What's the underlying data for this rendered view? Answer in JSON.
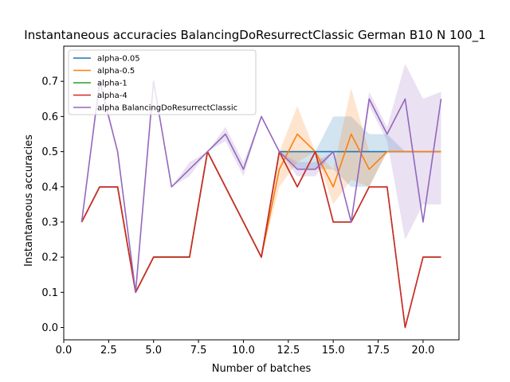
{
  "chart_data": {
    "type": "line",
    "title": "Instantaneous accuracies BalancingDoResurrectClassic German B10 N 100_1",
    "xlabel": "Number of batches",
    "ylabel": "Instantaneous accuracies",
    "xlim": [
      0,
      22
    ],
    "ylim": [
      -0.035,
      0.8
    ],
    "xticks": [
      0.0,
      2.5,
      5.0,
      7.5,
      10.0,
      12.5,
      15.0,
      17.5,
      20.0
    ],
    "xtick_labels": [
      "0.0",
      "2.5",
      "5.0",
      "7.5",
      "10.0",
      "12.5",
      "15.0",
      "17.5",
      "20.0"
    ],
    "yticks": [
      0.0,
      0.1,
      0.2,
      0.3,
      0.4,
      0.5,
      0.6,
      0.7
    ],
    "ytick_labels": [
      "0.0",
      "0.1",
      "0.2",
      "0.3",
      "0.4",
      "0.5",
      "0.6",
      "0.7"
    ],
    "grid": false,
    "legend_position": "top-left",
    "x": [
      1,
      2,
      3,
      4,
      5,
      6,
      7,
      8,
      9,
      10,
      11,
      12,
      13,
      14,
      15,
      16,
      17,
      18,
      19,
      20,
      21
    ],
    "series": [
      {
        "name": "alpha-0.05",
        "color": "#1f77b4",
        "values": [
          0.3,
          0.4,
          0.4,
          0.1,
          0.2,
          0.2,
          0.2,
          0.5,
          0.4,
          0.3,
          0.2,
          0.5,
          0.5,
          0.5,
          0.5,
          0.5,
          0.5,
          0.5,
          0.5,
          0.5,
          0.5
        ],
        "band_upper": [
          0.3,
          0.4,
          0.4,
          0.1,
          0.2,
          0.2,
          0.2,
          0.5,
          0.4,
          0.3,
          0.2,
          0.5,
          0.5,
          0.5,
          0.6,
          0.6,
          0.55,
          0.55,
          0.5,
          0.5,
          0.5
        ],
        "band_lower": [
          0.3,
          0.4,
          0.4,
          0.1,
          0.2,
          0.2,
          0.2,
          0.5,
          0.4,
          0.3,
          0.2,
          0.5,
          0.45,
          0.45,
          0.45,
          0.4,
          0.4,
          0.5,
          0.5,
          0.5,
          0.5
        ]
      },
      {
        "name": "alpha-0.5",
        "color": "#ff7f0e",
        "values": [
          0.3,
          0.4,
          0.4,
          0.1,
          0.2,
          0.2,
          0.2,
          0.5,
          0.4,
          0.3,
          0.2,
          0.45,
          0.55,
          0.5,
          0.4,
          0.55,
          0.45,
          0.5,
          0.5,
          0.5,
          0.5
        ],
        "band_upper": [
          0.3,
          0.4,
          0.4,
          0.1,
          0.2,
          0.2,
          0.2,
          0.5,
          0.4,
          0.3,
          0.2,
          0.5,
          0.63,
          0.5,
          0.45,
          0.68,
          0.5,
          0.5,
          0.5,
          0.5,
          0.5
        ],
        "band_lower": [
          0.3,
          0.4,
          0.4,
          0.1,
          0.2,
          0.2,
          0.2,
          0.5,
          0.4,
          0.3,
          0.2,
          0.4,
          0.47,
          0.5,
          0.35,
          0.42,
          0.4,
          0.5,
          0.5,
          0.5,
          0.5
        ]
      },
      {
        "name": "alpha-1",
        "color": "#2ca02c",
        "values": [
          0.3,
          0.4,
          0.4,
          0.1,
          0.2,
          0.2,
          0.2,
          0.5,
          0.4,
          0.3,
          0.2,
          0.5,
          0.4,
          0.5,
          0.3,
          0.3,
          0.4,
          0.4,
          0.0,
          0.2,
          0.2
        ]
      },
      {
        "name": "alpha-4",
        "color": "#d62728",
        "values": [
          0.3,
          0.4,
          0.4,
          0.1,
          0.2,
          0.2,
          0.2,
          0.5,
          0.4,
          0.3,
          0.2,
          0.5,
          0.4,
          0.5,
          0.3,
          0.3,
          0.4,
          0.4,
          0.0,
          0.2,
          0.2
        ]
      },
      {
        "name": "alpha BalancingDoResurrectClassic",
        "color": "#9467bd",
        "values": [
          0.3,
          0.7,
          0.5,
          0.1,
          0.7,
          0.4,
          0.45,
          0.5,
          0.55,
          0.45,
          0.6,
          0.5,
          0.45,
          0.45,
          0.5,
          0.3,
          0.65,
          0.55,
          0.65,
          0.3,
          0.65
        ],
        "band_upper": [
          0.3,
          0.72,
          0.5,
          0.1,
          0.7,
          0.4,
          0.47,
          0.5,
          0.57,
          0.47,
          0.6,
          0.5,
          0.47,
          0.47,
          0.5,
          0.3,
          0.67,
          0.57,
          0.75,
          0.65,
          0.67
        ],
        "band_lower": [
          0.3,
          0.68,
          0.5,
          0.1,
          0.7,
          0.4,
          0.43,
          0.5,
          0.53,
          0.43,
          0.6,
          0.5,
          0.43,
          0.43,
          0.5,
          0.3,
          0.63,
          0.53,
          0.25,
          0.35,
          0.35
        ]
      }
    ]
  }
}
